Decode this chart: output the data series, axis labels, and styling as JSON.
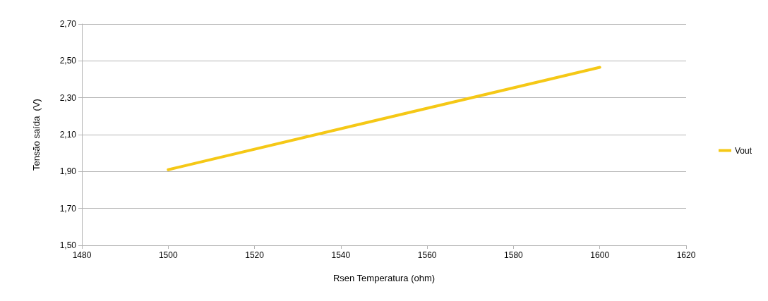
{
  "chart_data": {
    "type": "line",
    "xlabel": "Rsen Temperatura (ohm)",
    "ylabel": "Tensão saída  (V)",
    "x": [
      1500,
      1600
    ],
    "series": [
      {
        "name": "Vout",
        "color": "#f5c816",
        "values": [
          1.91,
          2.465
        ]
      }
    ],
    "xlim": [
      1480,
      1620
    ],
    "xticks": [
      1480,
      1500,
      1520,
      1540,
      1560,
      1580,
      1600,
      1620
    ],
    "ylim": [
      1.5,
      2.7
    ],
    "yticks": [
      {
        "value": 1.5,
        "label": "1,50"
      },
      {
        "value": 1.7,
        "label": "1,70"
      },
      {
        "value": 1.9,
        "label": "1,90"
      },
      {
        "value": 2.1,
        "label": "2,10"
      },
      {
        "value": 2.3,
        "label": "2,30"
      },
      {
        "value": 2.5,
        "label": "2,50"
      },
      {
        "value": 2.7,
        "label": "2,70"
      }
    ],
    "grid": "y",
    "legend": "right",
    "marker": "none",
    "line_style": "solid"
  }
}
